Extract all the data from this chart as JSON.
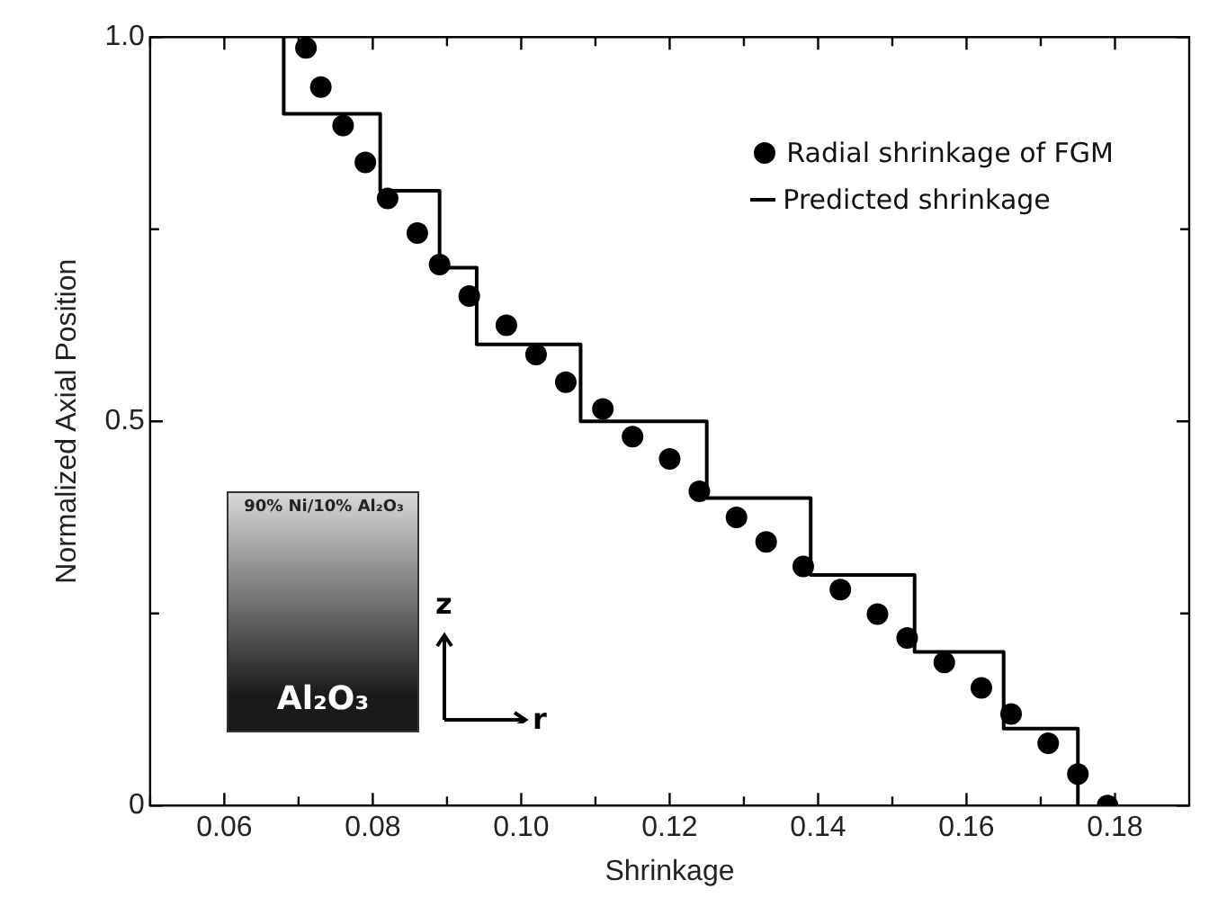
{
  "chart_data": {
    "type": "scatter",
    "xlabel": "Shrinkage",
    "ylabel": "Normalized Axial Position",
    "xlim": [
      0.05,
      0.19
    ],
    "ylim": [
      0,
      1
    ],
    "xticks": [
      {
        "value": 0.05,
        "label": null
      },
      0.06,
      {
        "value": 0.07,
        "label": null
      },
      0.08,
      {
        "value": 0.09,
        "label": null
      },
      {
        "value": 0.1,
        "label": "0.10"
      },
      {
        "value": 0.11,
        "label": null
      },
      0.12,
      {
        "value": 0.13,
        "label": null
      },
      0.14,
      {
        "value": 0.15,
        "label": null
      },
      0.16,
      {
        "value": 0.17,
        "label": null
      },
      0.18
    ],
    "yticks": [
      0,
      {
        "value": 0.25,
        "label": null
      },
      0.5,
      {
        "value": 0.75,
        "label": null
      },
      {
        "value": 1,
        "label": "1.0"
      }
    ],
    "grid": false,
    "legend": "top right",
    "annotations": [
      "90% Ni/10% Al₂O₃",
      "Al₂O₃",
      "z",
      "r"
    ],
    "series": [
      {
        "name": "Radial shrinkage of FGM",
        "type": "scatter",
        "marker": "circle",
        "color": "#000000",
        "x": [
          0.071,
          0.073,
          0.076,
          0.079,
          0.082,
          0.086,
          0.089,
          0.093,
          0.098,
          0.102,
          0.106,
          0.111,
          0.115,
          0.12,
          0.124,
          0.129,
          0.133,
          0.138,
          0.143,
          0.148,
          0.152,
          0.157,
          0.162,
          0.166,
          0.171,
          0.175,
          0.179
        ],
        "values": [
          0.986,
          0.935,
          0.885,
          0.837,
          0.79,
          0.745,
          0.704,
          0.663,
          0.625,
          0.587,
          0.551,
          0.516,
          0.48,
          0.451,
          0.409,
          0.375,
          0.343,
          0.311,
          0.281,
          0.249,
          0.218,
          0.186,
          0.153,
          0.119,
          0.081,
          0.041,
          0.0
        ]
      },
      {
        "name": "Predicted shrinkage",
        "type": "line",
        "marker": "none",
        "line_style": "solid",
        "color": "#000000",
        "x": [
          0.068,
          0.068,
          0.081,
          0.081,
          0.089,
          0.089,
          0.094,
          0.094,
          0.108,
          0.108,
          0.125,
          0.125,
          0.139,
          0.139,
          0.153,
          0.153,
          0.165,
          0.165,
          0.175,
          0.175
        ],
        "values": [
          1.0,
          0.9,
          0.9,
          0.8,
          0.8,
          0.7,
          0.7,
          0.6,
          0.6,
          0.5,
          0.5,
          0.4,
          0.4,
          0.3,
          0.3,
          0.2,
          0.2,
          0.1,
          0.1,
          0.0
        ]
      }
    ]
  }
}
